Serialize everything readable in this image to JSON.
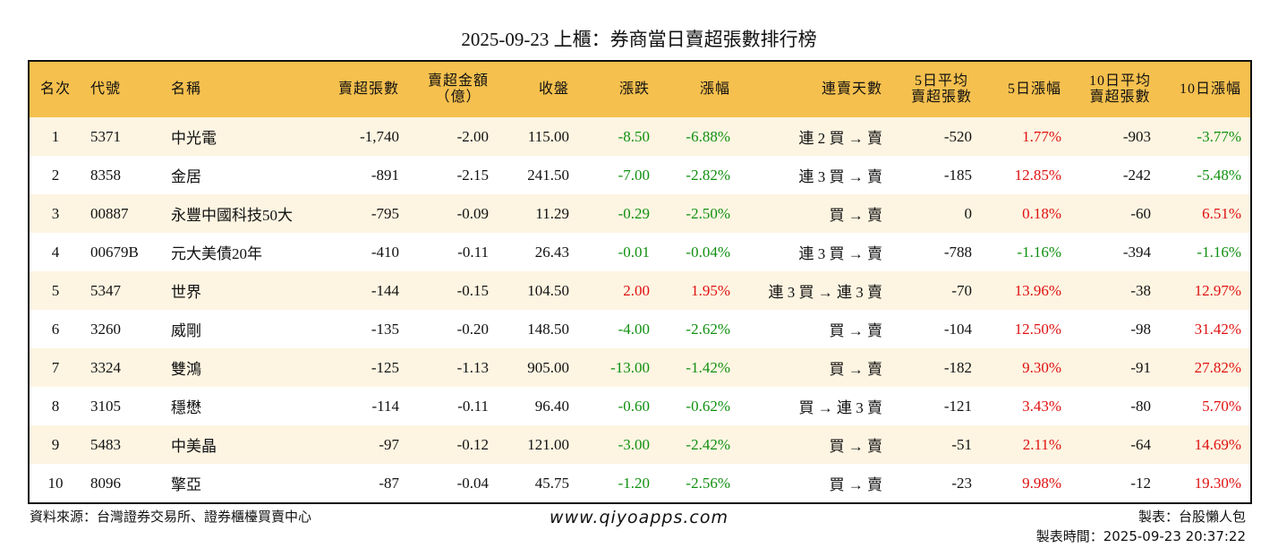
{
  "header": {
    "title": "2025-09-23 上櫃：券商當日賣超張數排行榜"
  },
  "table": {
    "columns": [
      "名次",
      "代號",
      "名稱",
      "賣超張數",
      [
        "賣超金額",
        "（億）"
      ],
      "收盤",
      "漲跌",
      "漲幅",
      "連賣天數",
      [
        "5日平均",
        "賣超張數"
      ],
      "5日漲幅",
      [
        "10日平均",
        "賣超張數"
      ],
      "10日漲幅"
    ],
    "rows": [
      [
        "1",
        "5371",
        "中光電",
        "-1,740",
        "-2.00",
        "115.00",
        "-8.50",
        "-6.88%",
        "連 2 買 → 賣",
        "-520",
        "1.77%",
        "-903",
        "-3.77%"
      ],
      [
        "2",
        "8358",
        "金居",
        "-891",
        "-2.15",
        "241.50",
        "-7.00",
        "-2.82%",
        "連 3 買 → 賣",
        "-185",
        "12.85%",
        "-242",
        "-5.48%"
      ],
      [
        "3",
        "00887",
        "永豐中國科技50大",
        "-795",
        "-0.09",
        "11.29",
        "-0.29",
        "-2.50%",
        "買 → 賣",
        "0",
        "0.18%",
        "-60",
        "6.51%"
      ],
      [
        "4",
        "00679B",
        "元大美債20年",
        "-410",
        "-0.11",
        "26.43",
        "-0.01",
        "-0.04%",
        "連 3 買 → 賣",
        "-788",
        "-1.16%",
        "-394",
        "-1.16%"
      ],
      [
        "5",
        "5347",
        "世界",
        "-144",
        "-0.15",
        "104.50",
        "2.00",
        "1.95%",
        "連 3 買 → 連 3 賣",
        "-70",
        "13.96%",
        "-38",
        "12.97%"
      ],
      [
        "6",
        "3260",
        "威剛",
        "-135",
        "-0.20",
        "148.50",
        "-4.00",
        "-2.62%",
        "買 → 賣",
        "-104",
        "12.50%",
        "-98",
        "31.42%"
      ],
      [
        "7",
        "3324",
        "雙鴻",
        "-125",
        "-1.13",
        "905.00",
        "-13.00",
        "-1.42%",
        "買 → 賣",
        "-182",
        "9.30%",
        "-91",
        "27.82%"
      ],
      [
        "8",
        "3105",
        "穩懋",
        "-114",
        "-0.11",
        "96.40",
        "-0.60",
        "-0.62%",
        "買 → 連 3 賣",
        "-121",
        "3.43%",
        "-80",
        "5.70%"
      ],
      [
        "9",
        "5483",
        "中美晶",
        "-97",
        "-0.12",
        "121.00",
        "-3.00",
        "-2.42%",
        "買 → 賣",
        "-51",
        "2.11%",
        "-64",
        "14.69%"
      ],
      [
        "10",
        "8096",
        "擎亞",
        "-87",
        "-0.04",
        "45.75",
        "-1.20",
        "-2.56%",
        "買 → 賣",
        "-23",
        "9.98%",
        "-12",
        "19.30%"
      ]
    ]
  },
  "footer": {
    "source": "資料來源：台灣證券交易所、證券櫃檯買賣中心",
    "website": "www.qiyoapps.com",
    "maker": "製表：台股懶人包",
    "time": "製表時間：2025-09-23 20:37:22"
  }
}
